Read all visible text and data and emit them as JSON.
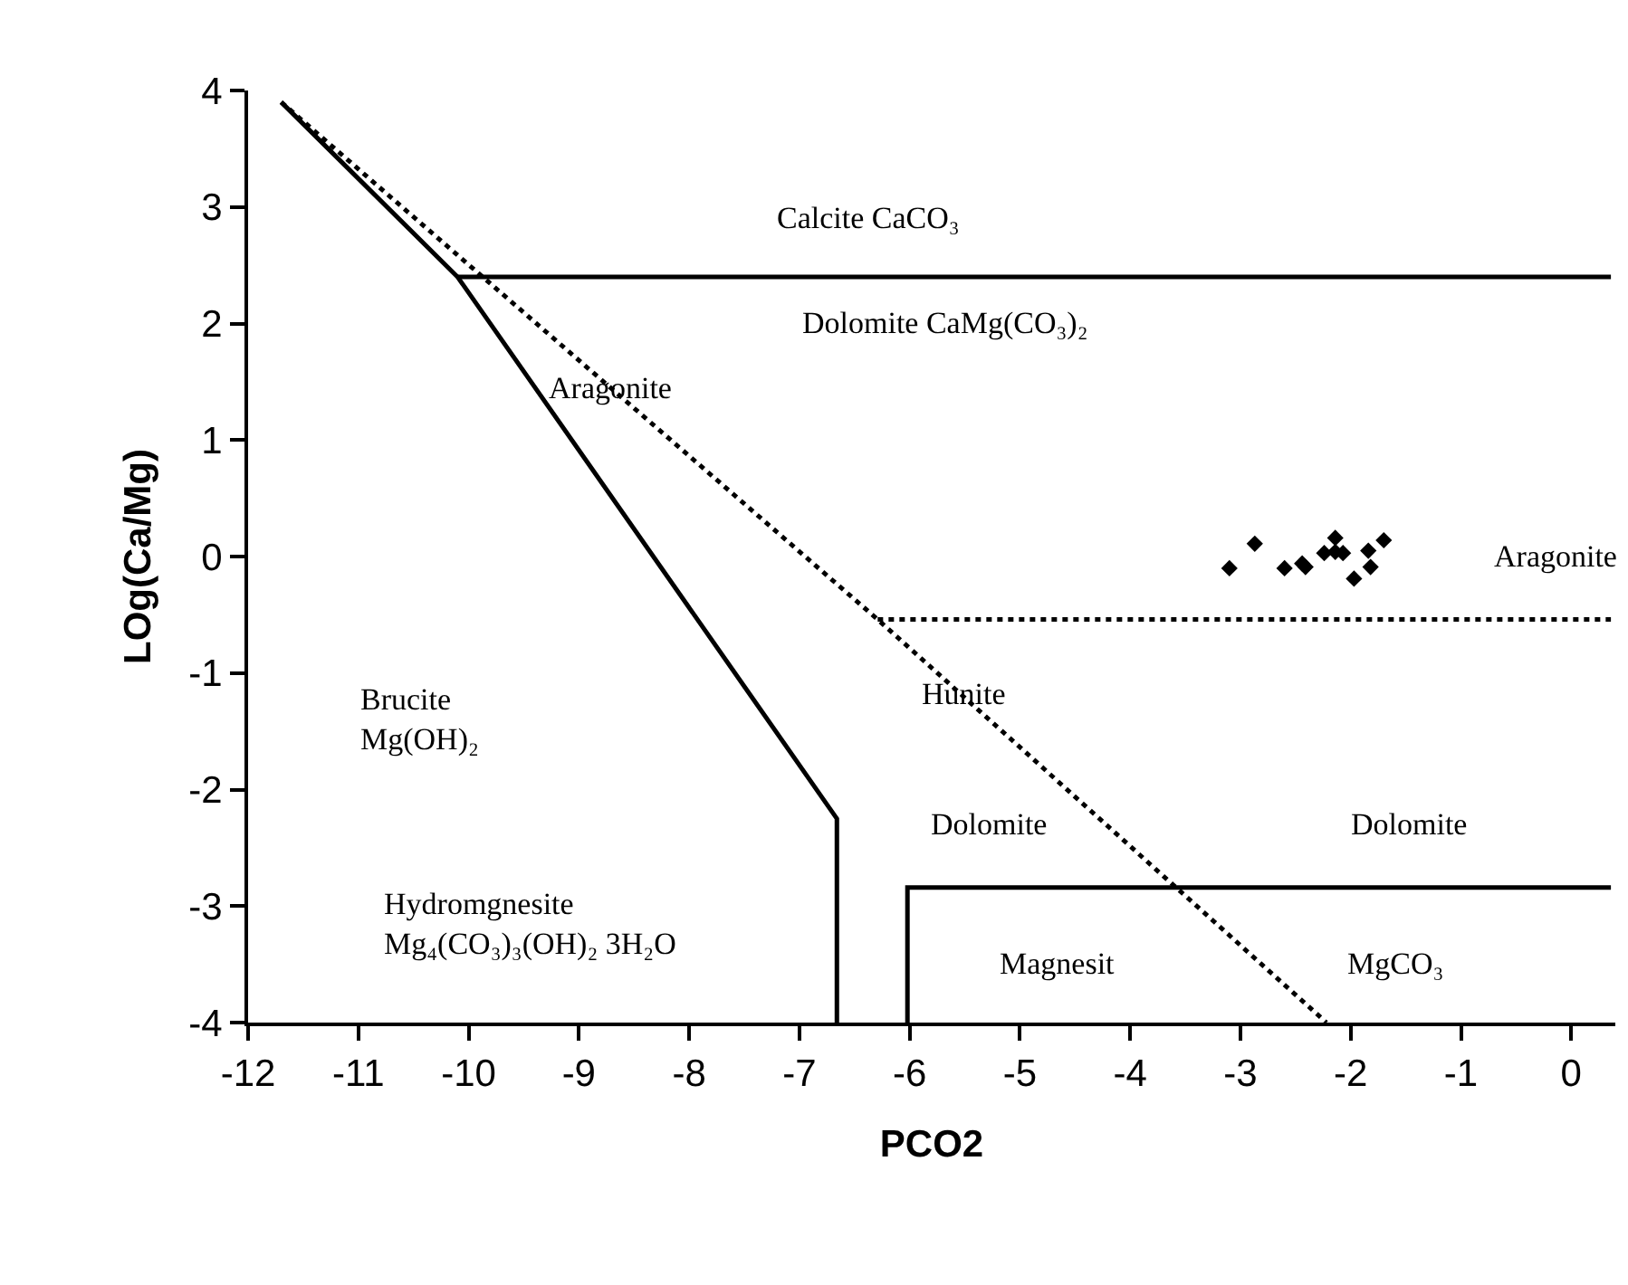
{
  "chart_data": {
    "type": "line",
    "xlabel": "PCO2",
    "ylabel": "LOg(Ca/Mg)",
    "xlim": [
      -12,
      0.4
    ],
    "xticks": [
      -12,
      -11,
      -10,
      -9,
      -8,
      -7,
      -6,
      -5,
      -4,
      -3,
      -2,
      -1,
      0
    ],
    "ylim": [
      -4,
      4
    ],
    "yticks": [
      -4,
      -3,
      -2,
      -1,
      0,
      1,
      2,
      3,
      4
    ],
    "series": [
      {
        "color": "#000000",
        "line_style": "solid",
        "marker": "none",
        "x": [
          -11.7,
          -10.1,
          -6.66,
          -6.66
        ],
        "values": [
          3.9,
          2.4,
          -2.25,
          -4
        ]
      },
      {
        "color": "#000000",
        "line_style": "solid",
        "marker": "none",
        "x": [
          -10.1,
          0.36
        ],
        "values": [
          2.4,
          2.4
        ]
      },
      {
        "color": "#000000",
        "line_style": "solid",
        "marker": "none",
        "x": [
          -6.02,
          -6.02,
          0.36
        ],
        "values": [
          -4,
          -2.84,
          -2.84
        ]
      },
      {
        "color": "#000000",
        "line_style": "dotted",
        "marker": "none",
        "x": [
          -11.7,
          -6.29,
          -2.22
        ],
        "values": [
          3.9,
          -0.54,
          -4
        ]
      },
      {
        "color": "#000000",
        "line_style": "dotted",
        "marker": "none",
        "x": [
          -6.29,
          0.36
        ],
        "values": [
          -0.54,
          -0.54
        ]
      },
      {
        "type": "scatter",
        "color": "#000000",
        "marker": "diamond",
        "x": [
          -3.1,
          -2.87,
          -2.6,
          -2.44,
          -2.41,
          -2.24,
          -2.14,
          -2.14,
          -2.07,
          -1.84,
          -1.7,
          -1.82,
          -1.97
        ],
        "values": [
          -0.1,
          0.11,
          -0.1,
          -0.06,
          -0.09,
          0.03,
          0.16,
          0.04,
          0.03,
          0.05,
          0.14,
          -0.09,
          -0.19
        ]
      }
    ],
    "annotations": [
      "Calcite CaCO₃",
      "Dolomite CaMg(CO₃)₂",
      "Aragonite",
      "Aragonite",
      "Hunite",
      "Brucite\nMg(OH)₂",
      "Dolomite",
      "Dolomite",
      "Hydromgnesite\nMg₄(CO₃)₃(OH)₂ 3H₂O",
      "Magnesit",
      "MgCO₃"
    ]
  }
}
